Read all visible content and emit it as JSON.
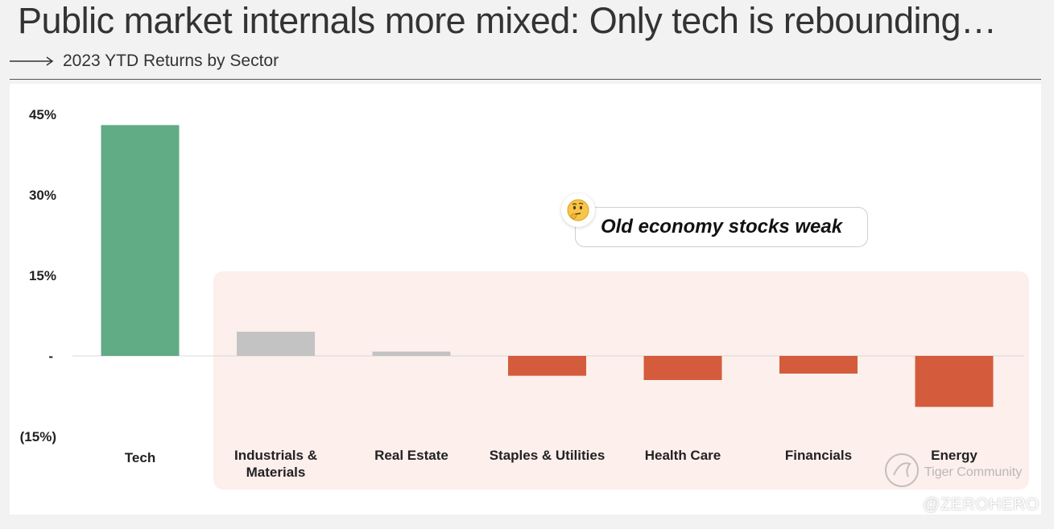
{
  "header": {
    "title": "Public market internals more mixed: Only tech is rebounding…",
    "subtitle": "2023 YTD Returns by Sector"
  },
  "callout": {
    "text": "Old economy stocks weak",
    "icon": "thinking-face-icon"
  },
  "watermark": {
    "community": "Tiger Community",
    "user": "@ZEROHERO"
  },
  "colors": {
    "tech": "#61ab85",
    "neutral": "#c3c3c3",
    "negative": "#d45c3c",
    "highlight": "#fcefec"
  },
  "chart_data": {
    "type": "bar",
    "title": "2023 YTD Returns by Sector",
    "categories": [
      "Tech",
      "Industrials & Materials",
      "Real Estate",
      "Staples & Utilities",
      "Health Care",
      "Financials",
      "Energy"
    ],
    "category_lines": [
      [
        "Tech"
      ],
      [
        "Industrials &",
        "Materials"
      ],
      [
        "Real Estate"
      ],
      [
        "Staples & Utilities"
      ],
      [
        "Health Care"
      ],
      [
        "Financials"
      ],
      [
        "Energy"
      ]
    ],
    "values": [
      43,
      4.5,
      0.8,
      -3.7,
      -4.5,
      -3.3,
      -9.5
    ],
    "ylim": [
      -15,
      45
    ],
    "yticks": [
      45,
      30,
      15,
      0,
      -15
    ],
    "ytick_labels": [
      "45%",
      "30%",
      "15%",
      "-",
      "(15%)"
    ],
    "bar_colors": [
      "tech",
      "neutral",
      "neutral",
      "negative",
      "negative",
      "negative",
      "negative"
    ],
    "grid": false,
    "legend": "none"
  }
}
